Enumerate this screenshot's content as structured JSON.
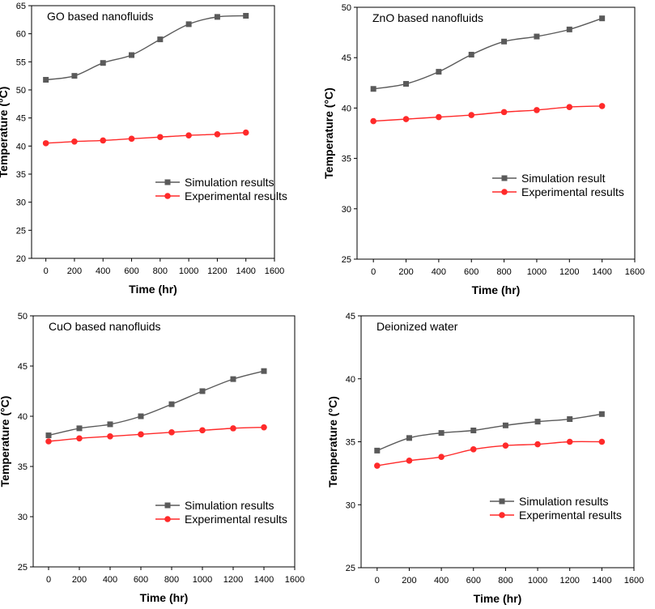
{
  "chart_data": [
    {
      "type": "line",
      "title": "GO based nanofluids",
      "xlabel": "Time (hr)",
      "ylabel": "Temperature (°C)",
      "xlim": [
        -100,
        1600
      ],
      "ylim": [
        20,
        65
      ],
      "xticks": [
        0,
        200,
        400,
        600,
        800,
        1000,
        1200,
        1400,
        1600
      ],
      "yticks": [
        20,
        25,
        30,
        35,
        40,
        45,
        50,
        55,
        60,
        65
      ],
      "legend_position": "lower-right",
      "x": [
        0,
        200,
        400,
        600,
        800,
        1000,
        1200,
        1400
      ],
      "series": [
        {
          "name": "Simulation results",
          "color": "#5a5a5a",
          "marker": "square",
          "values": [
            51.8,
            52.5,
            54.8,
            56.2,
            59.0,
            61.7,
            63.0,
            63.2
          ]
        },
        {
          "name": "Experimental results",
          "color": "#ff2a2a",
          "marker": "circle",
          "values": [
            40.5,
            40.8,
            41.0,
            41.3,
            41.6,
            41.9,
            42.1,
            42.4
          ]
        }
      ]
    },
    {
      "type": "line",
      "title": "ZnO based nanofluids",
      "xlabel": "Time (hr)",
      "ylabel": "Temperature (°C)",
      "xlim": [
        -100,
        1600
      ],
      "ylim": [
        25,
        50
      ],
      "xticks": [
        0,
        200,
        400,
        600,
        800,
        1000,
        1200,
        1400,
        1600
      ],
      "yticks": [
        25,
        30,
        35,
        40,
        45,
        50
      ],
      "legend_position": "lower-right",
      "x": [
        0,
        200,
        400,
        600,
        800,
        1000,
        1200,
        1400
      ],
      "series": [
        {
          "name": "Simulation result",
          "color": "#5a5a5a",
          "marker": "square",
          "values": [
            41.9,
            42.4,
            43.6,
            45.3,
            46.6,
            47.1,
            47.8,
            48.9
          ]
        },
        {
          "name": "Experimental results",
          "color": "#ff2a2a",
          "marker": "circle",
          "values": [
            38.7,
            38.9,
            39.1,
            39.3,
            39.6,
            39.8,
            40.1,
            40.2
          ]
        }
      ]
    },
    {
      "type": "line",
      "title": "CuO based nanofluids",
      "xlabel": "Time (hr)",
      "ylabel": "Temperature (°C)",
      "xlim": [
        -100,
        1600
      ],
      "ylim": [
        25,
        50
      ],
      "xticks": [
        0,
        200,
        400,
        600,
        800,
        1000,
        1200,
        1400,
        1600
      ],
      "yticks": [
        25,
        30,
        35,
        40,
        45,
        50
      ],
      "legend_position": "lower-right",
      "x": [
        0,
        200,
        400,
        600,
        800,
        1000,
        1200,
        1400
      ],
      "series": [
        {
          "name": "Simulation results",
          "color": "#5a5a5a",
          "marker": "square",
          "values": [
            38.1,
            38.8,
            39.2,
            40.0,
            41.2,
            42.5,
            43.7,
            44.5
          ]
        },
        {
          "name": "Experimental results",
          "color": "#ff2a2a",
          "marker": "circle",
          "values": [
            37.5,
            37.8,
            38.0,
            38.2,
            38.4,
            38.6,
            38.8,
            38.9
          ]
        }
      ]
    },
    {
      "type": "line",
      "title": "Deionized water",
      "xlabel": "Time (hr)",
      "ylabel": "Temperature (°C)",
      "xlim": [
        -100,
        1600
      ],
      "ylim": [
        25,
        45
      ],
      "xticks": [
        0,
        200,
        400,
        600,
        800,
        1000,
        1200,
        1400,
        1600
      ],
      "yticks": [
        25,
        30,
        35,
        40,
        45
      ],
      "legend_position": "lower-right",
      "x": [
        0,
        200,
        400,
        600,
        800,
        1000,
        1200,
        1400
      ],
      "series": [
        {
          "name": "Simulation results",
          "color": "#5a5a5a",
          "marker": "square",
          "values": [
            34.3,
            35.3,
            35.7,
            35.9,
            36.3,
            36.6,
            36.8,
            37.2
          ]
        },
        {
          "name": "Experimental results",
          "color": "#ff2a2a",
          "marker": "circle",
          "values": [
            33.1,
            33.5,
            33.8,
            34.4,
            34.7,
            34.8,
            35.0,
            35.0
          ]
        }
      ]
    }
  ]
}
